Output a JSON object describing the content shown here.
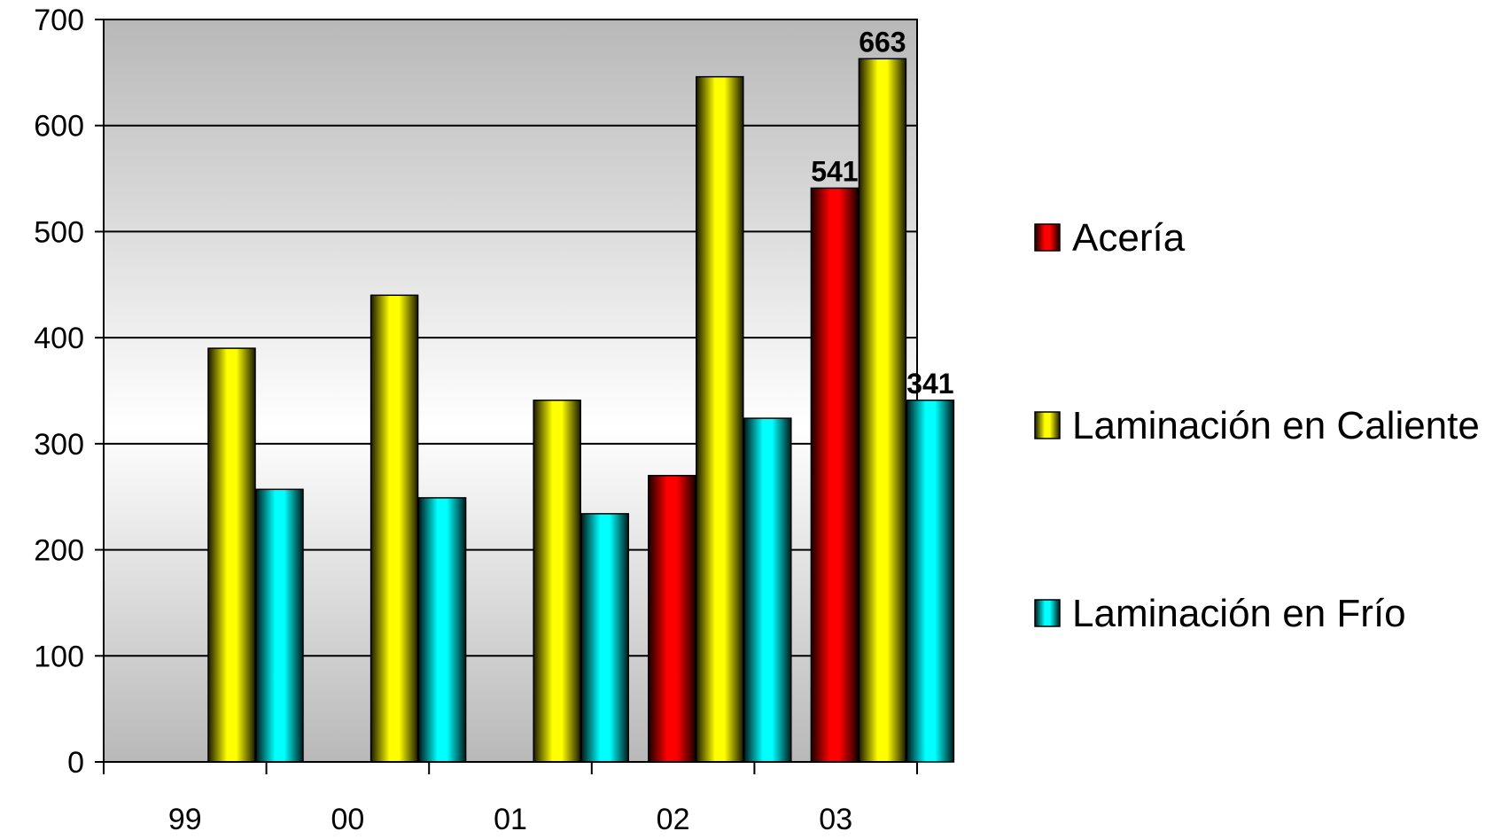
{
  "chart_data": {
    "type": "bar",
    "title": "",
    "xlabel": "",
    "ylabel": "",
    "categories": [
      "99",
      "00",
      "01",
      "02",
      "03"
    ],
    "ylim": [
      0,
      700
    ],
    "yticks": [
      "0",
      "100",
      "200",
      "300",
      "400",
      "500",
      "600",
      "700"
    ],
    "grid": true,
    "legend_position": "right",
    "series": [
      {
        "name": "Acería",
        "color": "#ff0000",
        "values": [
          null,
          null,
          null,
          270,
          541
        ]
      },
      {
        "name": "Laminación en Caliente",
        "color": "#ffff00",
        "values": [
          390,
          440,
          341,
          646,
          663
        ]
      },
      {
        "name": "Laminación en Frío",
        "color": "#00ffff",
        "values": [
          257,
          249,
          234,
          324,
          341
        ]
      }
    ],
    "data_labels": [
      {
        "series": 0,
        "category": 4,
        "text": "541"
      },
      {
        "series": 1,
        "category": 4,
        "text": "663"
      },
      {
        "series": 2,
        "category": 4,
        "text": "341"
      }
    ]
  }
}
